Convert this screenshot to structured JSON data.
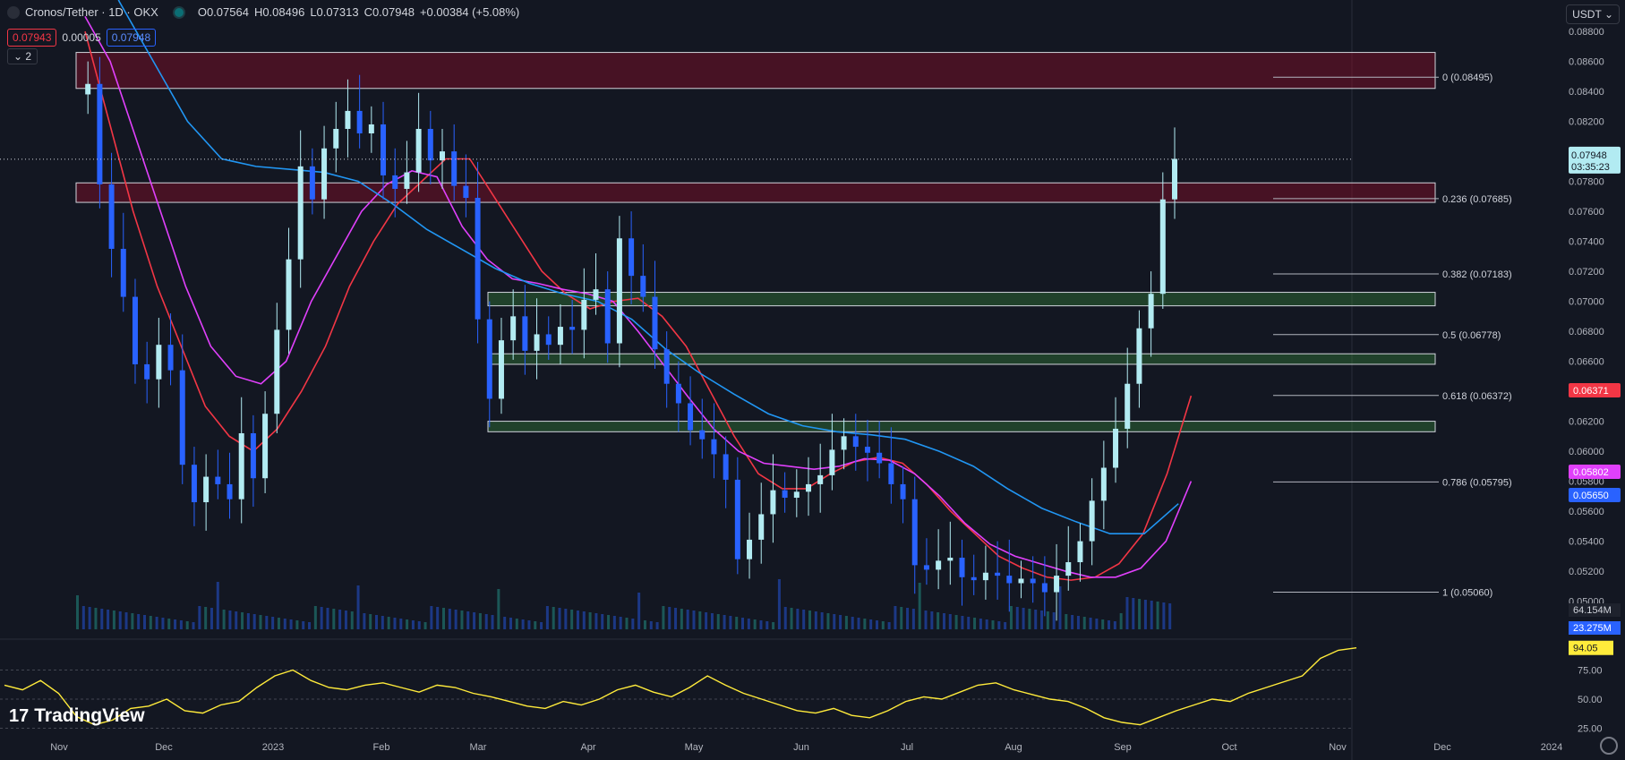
{
  "header": {
    "symbol": "Cronos/Tether · 1D · OKX",
    "open": "O0.07564",
    "high": "H0.08496",
    "low": "L0.07313",
    "close": "C0.07948",
    "change": "+0.00384 (+5.08%)",
    "sell_price": "0.07943",
    "spread": "0.00005",
    "buy_price": "0.07948",
    "collapse_label": "2",
    "currency": "USDT"
  },
  "watermark": "TradingView",
  "chart_data": {
    "type": "candlestick",
    "price_axis": {
      "ylim": [
        0.0489,
        0.0895
      ],
      "ticks": [
        "0.08800",
        "0.08600",
        "0.08400",
        "0.08200",
        "0.08000",
        "0.07800",
        "0.07600",
        "0.07400",
        "0.07200",
        "0.07000",
        "0.06800",
        "0.06600",
        "0.06400",
        "0.06200",
        "0.06000",
        "0.05800",
        "0.05600",
        "0.05400",
        "0.05200",
        "0.05000"
      ]
    },
    "time_axis": [
      "Nov",
      "Dec",
      "2023",
      "Feb",
      "Mar",
      "Apr",
      "May",
      "Jun",
      "Jul",
      "Aug",
      "Sep",
      "Oct",
      "Nov",
      "Dec",
      "2024"
    ],
    "last_price": {
      "value": "0.07948",
      "countdown": "03:35:23"
    },
    "ma_labels": [
      {
        "value": "0.06371",
        "color": "#f23645"
      },
      {
        "value": "0.05802",
        "color": "#e040fb"
      },
      {
        "value": "0.05650",
        "color": "#2962ff"
      }
    ],
    "fib_levels": [
      {
        "ratio": "0",
        "price": 0.08495,
        "label": "0 (0.08495)"
      },
      {
        "ratio": "0.236",
        "price": 0.07685,
        "label": "0.236 (0.07685)"
      },
      {
        "ratio": "0.382",
        "price": 0.07183,
        "label": "0.382 (0.07183)"
      },
      {
        "ratio": "0.5",
        "price": 0.06778,
        "label": "0.5 (0.06778)"
      },
      {
        "ratio": "0.618",
        "price": 0.06372,
        "label": "0.618 (0.06372)"
      },
      {
        "ratio": "0.786",
        "price": 0.05795,
        "label": "0.786 (0.05795)"
      },
      {
        "ratio": "1",
        "price": 0.0506,
        "label": "1 (0.05060)"
      }
    ],
    "zones": [
      {
        "type": "resistance",
        "low": 0.0842,
        "high": 0.0866
      },
      {
        "type": "resistance",
        "low": 0.0766,
        "high": 0.0779
      },
      {
        "type": "support",
        "low": 0.0697,
        "high": 0.0706
      },
      {
        "type": "support",
        "low": 0.0658,
        "high": 0.0665
      },
      {
        "type": "support",
        "low": 0.0613,
        "high": 0.062
      }
    ],
    "price_series": [
      0.0838,
      0.0845,
      0.0778,
      0.0735,
      0.0703,
      0.0658,
      0.0648,
      0.0671,
      0.0654,
      0.0591,
      0.0566,
      0.0583,
      0.0578,
      0.0568,
      0.0612,
      0.0582,
      0.0625,
      0.0681,
      0.0728,
      0.079,
      0.0768,
      0.0802,
      0.0815,
      0.0827,
      0.0812,
      0.0818,
      0.0784,
      0.0775,
      0.0786,
      0.0815,
      0.0794,
      0.08,
      0.0777,
      0.0769,
      0.0688,
      0.0635,
      0.0674,
      0.069,
      0.0667,
      0.0678,
      0.0671,
      0.0683,
      0.0681,
      0.0701,
      0.0708,
      0.0672,
      0.0742,
      0.0717,
      0.0703,
      0.0668,
      0.0645,
      0.0632,
      0.0614,
      0.0608,
      0.0598,
      0.0581,
      0.0528,
      0.0541,
      0.0558,
      0.0574,
      0.0569,
      0.0573,
      0.0578,
      0.0584,
      0.0601,
      0.061,
      0.0603,
      0.0599,
      0.0592,
      0.0578,
      0.0568,
      0.0524,
      0.0521,
      0.0527,
      0.0529,
      0.0516,
      0.0514,
      0.0519,
      0.0517,
      0.0512,
      0.0515,
      0.0512,
      0.0506,
      0.0517,
      0.0526,
      0.054,
      0.0567,
      0.0589,
      0.0615,
      0.0645,
      0.0682,
      0.0705,
      0.0768,
      0.0795
    ],
    "volume_axis": {
      "vol_ma": "64.154M",
      "vol": "23.275M"
    },
    "rsi": {
      "value": "94.05",
      "ticks": [
        "75.00",
        "50.00",
        "25.00"
      ],
      "series": [
        62,
        58,
        66,
        55,
        35,
        28,
        32,
        42,
        44,
        50,
        40,
        38,
        45,
        48,
        60,
        70,
        75,
        66,
        60,
        58,
        62,
        64,
        60,
        56,
        62,
        60,
        55,
        52,
        48,
        44,
        42,
        48,
        45,
        50,
        58,
        62,
        56,
        52,
        60,
        70,
        62,
        55,
        50,
        45,
        40,
        38,
        42,
        36,
        34,
        40,
        48,
        52,
        50,
        56,
        62,
        64,
        58,
        54,
        50,
        48,
        42,
        34,
        30,
        28,
        34,
        40,
        45,
        50,
        48,
        55,
        60,
        65,
        70,
        85,
        92,
        94.05
      ]
    },
    "moving_averages": [
      {
        "color": "#f23645",
        "series": [
          0.088,
          0.082,
          0.076,
          0.071,
          0.067,
          0.063,
          0.061,
          0.06,
          0.0615,
          0.064,
          0.067,
          0.071,
          0.074,
          0.0765,
          0.078,
          0.0795,
          0.0795,
          0.077,
          0.0745,
          0.072,
          0.0705,
          0.0695,
          0.07,
          0.0702,
          0.069,
          0.067,
          0.064,
          0.061,
          0.0585,
          0.0575,
          0.0575,
          0.0585,
          0.0593,
          0.0596,
          0.0592,
          0.0578,
          0.056,
          0.0545,
          0.053,
          0.0522,
          0.0516,
          0.0514,
          0.0516,
          0.0525,
          0.0545,
          0.0585,
          0.0637
        ]
      },
      {
        "color": "#e040fb",
        "series": [
          0.089,
          0.086,
          0.081,
          0.076,
          0.071,
          0.067,
          0.065,
          0.0645,
          0.066,
          0.07,
          0.073,
          0.076,
          0.0778,
          0.0787,
          0.0783,
          0.075,
          0.0728,
          0.0715,
          0.0712,
          0.0708,
          0.0705,
          0.07,
          0.068,
          0.0658,
          0.0636,
          0.0615,
          0.06,
          0.0592,
          0.059,
          0.0588,
          0.059,
          0.0595,
          0.0594,
          0.0585,
          0.057,
          0.0552,
          0.0538,
          0.053,
          0.0525,
          0.052,
          0.0516,
          0.0516,
          0.0522,
          0.054,
          0.058
        ]
      },
      {
        "color": "#2196f3",
        "series": [
          0.095,
          0.09,
          0.086,
          0.082,
          0.0795,
          0.079,
          0.0788,
          0.0786,
          0.078,
          0.0765,
          0.0748,
          0.0735,
          0.0722,
          0.0712,
          0.0705,
          0.07,
          0.0688,
          0.0668,
          0.0652,
          0.0638,
          0.0625,
          0.0617,
          0.0613,
          0.0611,
          0.0608,
          0.06,
          0.059,
          0.0575,
          0.0562,
          0.0553,
          0.0545,
          0.0545,
          0.0565
        ]
      }
    ]
  }
}
